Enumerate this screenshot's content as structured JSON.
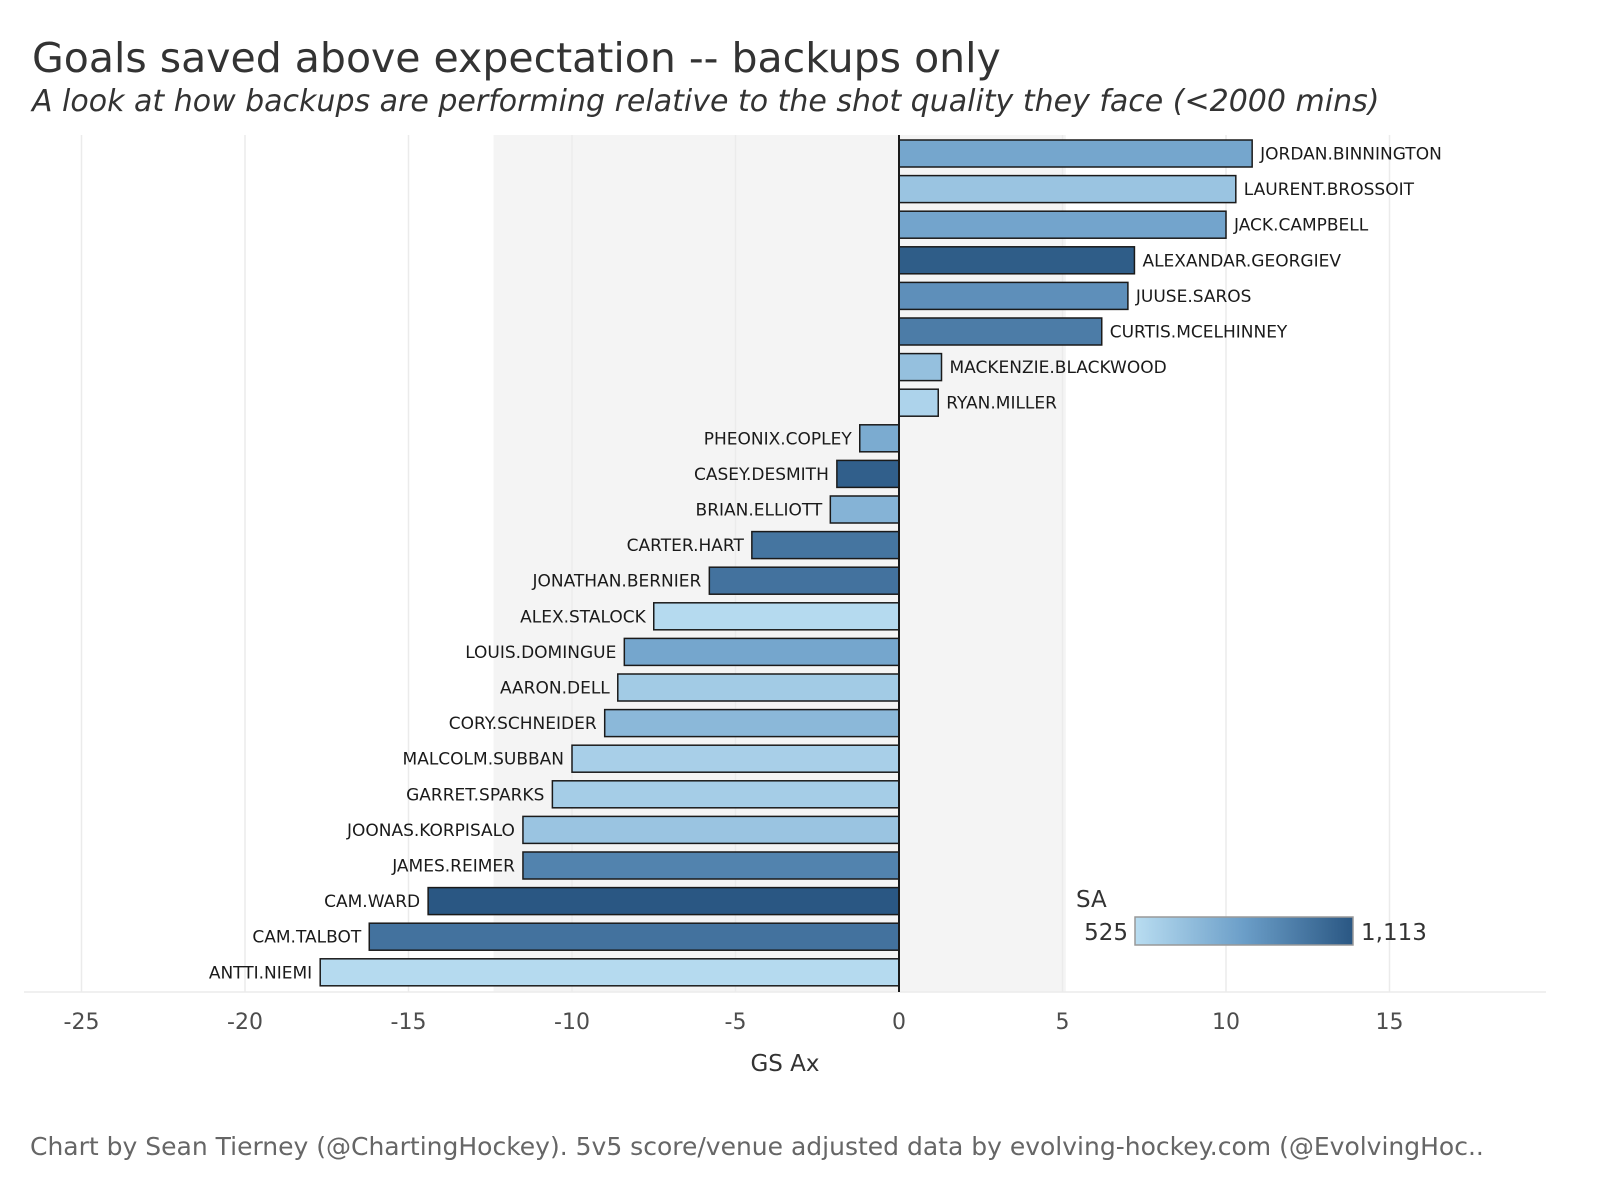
{
  "title": "Goals saved above expectation -- backups only",
  "subtitle": "A look at how backups are performing relative to the shot quality they face (<2000 mins)",
  "caption": "Chart by Sean Tierney (@ChartingHockey). 5v5 score/venue adjusted data by evolving-hockey.com (@EvolvingHoc..",
  "chart_data": {
    "type": "bar",
    "orientation": "horizontal",
    "xlabel": "GS Ax",
    "ylabel": "",
    "xlim": [
      -26.7,
      20
    ],
    "xticks": [
      -25,
      -20,
      -15,
      -10,
      -5,
      0,
      5,
      10,
      15
    ],
    "grid": true,
    "shaded_band": [
      -12.4,
      5.1
    ],
    "legend": {
      "title": "SA",
      "min_label": "525",
      "max_label": "1,113",
      "min": 525,
      "max": 1113,
      "placement": "bottom-right",
      "colors": [
        "#b9ddf1",
        "#2a5783"
      ]
    },
    "bars": [
      {
        "name": "JORDAN.BINNINGTON",
        "value": 10.8,
        "sa": 780
      },
      {
        "name": "LAURENT.BROSSOIT",
        "value": 10.3,
        "sa": 640
      },
      {
        "name": "JACK.CAMPBELL",
        "value": 10.0,
        "sa": 790
      },
      {
        "name": "ALEXANDAR.GEORGIEV",
        "value": 7.2,
        "sa": 1090
      },
      {
        "name": "JUUSE.SAROS",
        "value": 7.0,
        "sa": 880
      },
      {
        "name": "CURTIS.MCELHINNEY",
        "value": 6.2,
        "sa": 960
      },
      {
        "name": "MACKENZIE.BLACKWOOD",
        "value": 1.3,
        "sa": 660
      },
      {
        "name": "RYAN.MILLER",
        "value": 1.2,
        "sa": 570
      },
      {
        "name": "PHEONIX.COPLEY",
        "value": -1.2,
        "sa": 760
      },
      {
        "name": "CASEY.DESMITH",
        "value": -1.9,
        "sa": 1080
      },
      {
        "name": "BRIAN.ELLIOTT",
        "value": -2.1,
        "sa": 720
      },
      {
        "name": "CARTER.HART",
        "value": -4.5,
        "sa": 990
      },
      {
        "name": "JONATHAN.BERNIER",
        "value": -5.8,
        "sa": 1000
      },
      {
        "name": "ALEX.STALOCK",
        "value": -7.5,
        "sa": 540
      },
      {
        "name": "LOUIS.DOMINGUE",
        "value": -8.4,
        "sa": 780
      },
      {
        "name": "AARON.DELL",
        "value": -8.6,
        "sa": 610
      },
      {
        "name": "CORY.SCHNEIDER",
        "value": -9.0,
        "sa": 700
      },
      {
        "name": "MALCOLM.SUBBAN",
        "value": -10.0,
        "sa": 590
      },
      {
        "name": "GARRET.SPARKS",
        "value": -10.6,
        "sa": 600
      },
      {
        "name": "JOONAS.KORPISALO",
        "value": -11.5,
        "sa": 640
      },
      {
        "name": "JAMES.REIMER",
        "value": -11.5,
        "sa": 930
      },
      {
        "name": "CAM.WARD",
        "value": -14.4,
        "sa": 1113
      },
      {
        "name": "CAM.TALBOT",
        "value": -16.2,
        "sa": 1000
      },
      {
        "name": "ANTTI.NIEMI",
        "value": -17.7,
        "sa": 540
      }
    ]
  }
}
